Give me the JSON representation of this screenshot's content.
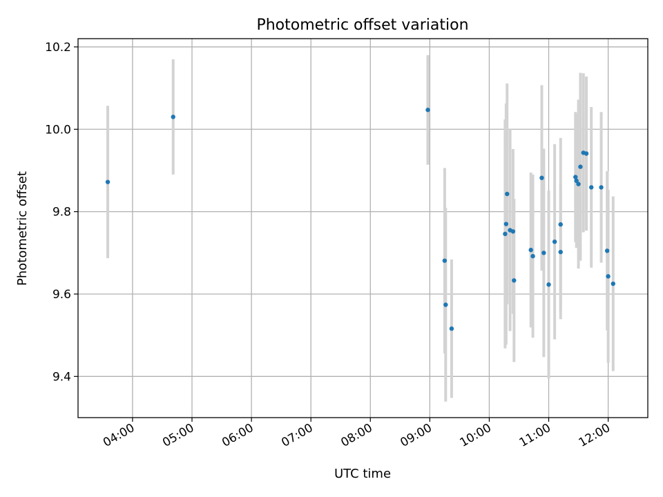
{
  "chart_data": {
    "type": "scatter",
    "title": "Photometric offset variation",
    "xlabel": "UTC time",
    "ylabel": "Photometric offset",
    "x_unit": "UTC time of day",
    "xlim": [
      "03:05",
      "12:40"
    ],
    "ylim": [
      9.3,
      10.22
    ],
    "x_ticks": [
      "04:00",
      "05:00",
      "06:00",
      "07:00",
      "08:00",
      "09:00",
      "10:00",
      "11:00",
      "12:00"
    ],
    "y_ticks": [
      9.4,
      9.6,
      9.8,
      10.0,
      10.2
    ],
    "y_tick_labels": [
      "9.4",
      "9.6",
      "9.8",
      "10.0",
      "10.2"
    ],
    "grid": true,
    "marker_color": "#1f77b4",
    "errorbar_color": "#d3d3d3",
    "points": [
      {
        "x": "03:35",
        "y": 9.872,
        "err": 0.185
      },
      {
        "x": "04:41",
        "y": 10.03,
        "err": 0.14
      },
      {
        "x": "08:58",
        "y": 10.047,
        "err": 0.133
      },
      {
        "x": "09:15",
        "y": 9.681,
        "err": 0.225
      },
      {
        "x": "09:16",
        "y": 9.574,
        "err": 0.235
      },
      {
        "x": "09:22",
        "y": 9.516,
        "err": 0.168
      },
      {
        "x": "10:16",
        "y": 9.746,
        "err": 0.278
      },
      {
        "x": "10:17",
        "y": 9.77,
        "err": 0.293
      },
      {
        "x": "10:18",
        "y": 9.843,
        "err": 0.268
      },
      {
        "x": "10:21",
        "y": 9.755,
        "err": 0.245
      },
      {
        "x": "10:24",
        "y": 9.752,
        "err": 0.2
      },
      {
        "x": "10:25",
        "y": 9.633,
        "err": 0.198
      },
      {
        "x": "10:42",
        "y": 9.707,
        "err": 0.188
      },
      {
        "x": "10:44",
        "y": 9.692,
        "err": 0.198
      },
      {
        "x": "10:53",
        "y": 9.882,
        "err": 0.225
      },
      {
        "x": "10:55",
        "y": 9.7,
        "err": 0.253
      },
      {
        "x": "11:00",
        "y": 9.623,
        "err": 0.228
      },
      {
        "x": "11:06",
        "y": 9.727,
        "err": 0.237
      },
      {
        "x": "11:12",
        "y": 9.769,
        "err": 0.21
      },
      {
        "x": "11:12",
        "y": 9.702,
        "err": 0.163
      },
      {
        "x": "11:27",
        "y": 9.884,
        "err": 0.158
      },
      {
        "x": "11:28",
        "y": 9.875,
        "err": 0.163
      },
      {
        "x": "11:30",
        "y": 9.867,
        "err": 0.205
      },
      {
        "x": "11:32",
        "y": 9.909,
        "err": 0.228
      },
      {
        "x": "11:35",
        "y": 9.943,
        "err": 0.193
      },
      {
        "x": "11:38",
        "y": 9.941,
        "err": 0.187
      },
      {
        "x": "11:43",
        "y": 9.859,
        "err": 0.195
      },
      {
        "x": "11:53",
        "y": 9.859,
        "err": 0.183
      },
      {
        "x": "11:59",
        "y": 9.705,
        "err": 0.193
      },
      {
        "x": "12:00",
        "y": 9.643,
        "err": 0.21
      },
      {
        "x": "12:05",
        "y": 9.625,
        "err": 0.212
      }
    ]
  }
}
